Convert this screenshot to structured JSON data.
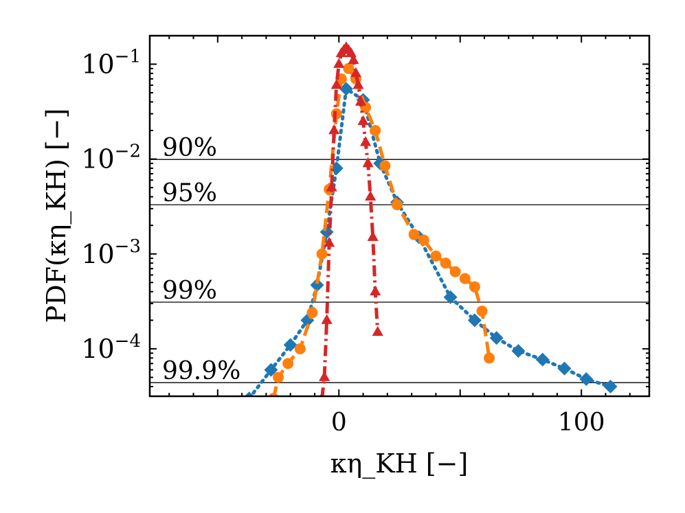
{
  "chart_data": {
    "type": "line",
    "title": "",
    "xlabel": "κη_KH [−]",
    "ylabel": "PDF(κη_KH) [−]",
    "xlim": [
      -78,
      128
    ],
    "ylim_log10": [
      -4.5,
      -0.7
    ],
    "xticks": [
      0,
      100
    ],
    "xtick_labels": [
      "0",
      "100"
    ],
    "yticks_log10": [
      -1,
      -2,
      -3,
      -4
    ],
    "ytick_labels": [
      [
        "10",
        "−1"
      ],
      [
        "10",
        "−2"
      ],
      [
        "10",
        "−3"
      ],
      [
        "10",
        "−4"
      ]
    ],
    "reference_lines": [
      {
        "label": "90%",
        "value": 0.0099
      },
      {
        "label": "95%",
        "value": 0.0033
      },
      {
        "label": "99%",
        "value": 0.00031
      },
      {
        "label": "99.9%",
        "value": 4.4e-05
      }
    ],
    "series": [
      {
        "name": "blue-diamond-dotted",
        "color": "#1f77b4",
        "marker": "diamond",
        "line_style": "dotted",
        "x": [
          -37,
          -28,
          -20,
          -13,
          -9,
          -5,
          -1,
          3,
          10,
          17,
          24,
          33,
          46,
          56,
          65,
          74,
          84,
          93,
          102,
          112
        ],
        "y": [
          3e-05,
          6e-05,
          0.00011,
          0.0002,
          0.00047,
          0.0017,
          0.008,
          0.055,
          0.042,
          0.009,
          0.0035,
          0.0015,
          0.00035,
          0.0002,
          0.00013,
          9.5e-05,
          7.7e-05,
          6.2e-05,
          4.8e-05,
          4e-05
        ]
      },
      {
        "name": "orange-circle-dashed",
        "color": "#ff7f0e",
        "marker": "circle",
        "line_style": "dashed",
        "x": [
          -27,
          -25,
          -21,
          -16,
          -11,
          -7,
          -4,
          -1,
          1,
          4,
          7,
          11,
          15,
          19,
          24,
          31,
          35,
          40,
          44,
          48,
          52,
          56,
          59,
          62
        ],
        "y": [
          3e-05,
          5e-05,
          7e-05,
          0.0001,
          0.00024,
          0.001,
          0.0048,
          0.03,
          0.07,
          0.09,
          0.07,
          0.035,
          0.02,
          0.0085,
          0.0033,
          0.0016,
          0.0014,
          0.00095,
          0.0008,
          0.00065,
          0.00055,
          0.00045,
          0.00025,
          8e-05
        ]
      },
      {
        "name": "red-triangle-dashdot",
        "color": "#d62728",
        "marker": "triangle",
        "line_style": "dashdot",
        "x": [
          -7,
          -6,
          -5,
          -4,
          -3,
          -2,
          -1,
          0,
          1,
          2,
          3,
          4,
          5,
          6,
          7,
          8,
          9,
          10,
          11,
          12,
          13,
          14,
          15,
          16
        ],
        "y": [
          3e-05,
          5e-05,
          0.0002,
          0.0013,
          0.005,
          0.02,
          0.06,
          0.1,
          0.13,
          0.14,
          0.15,
          0.14,
          0.13,
          0.11,
          0.08,
          0.06,
          0.04,
          0.025,
          0.015,
          0.009,
          0.004,
          0.0015,
          0.0004,
          0.00015
        ]
      }
    ]
  }
}
